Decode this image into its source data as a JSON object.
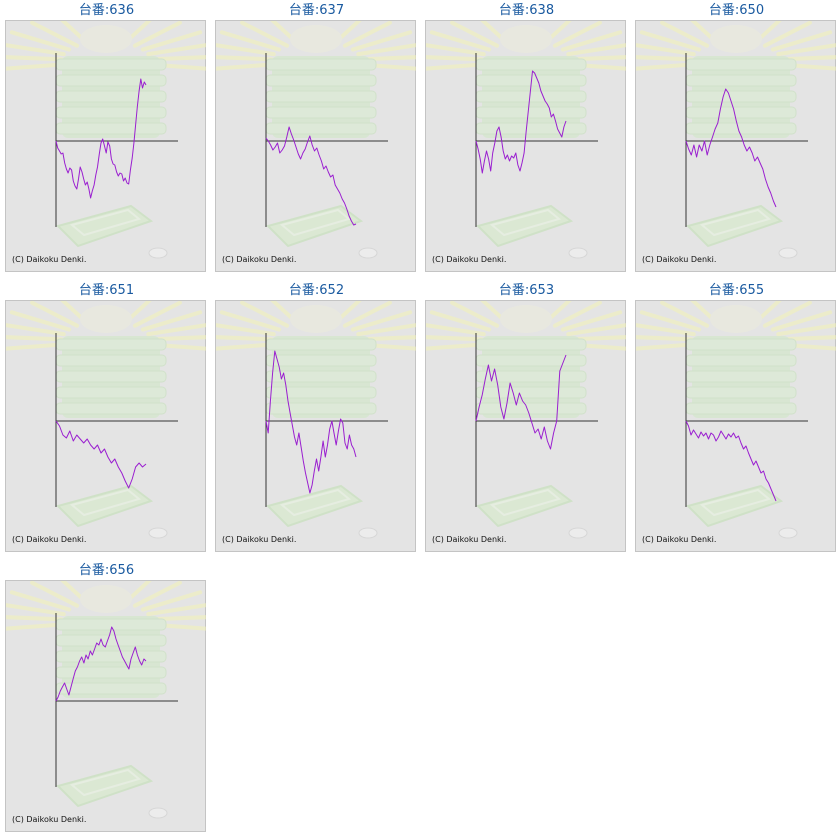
{
  "colors": {
    "line": "#9a1fd0",
    "title": "#1a5aa0",
    "background": "#e4e4e4",
    "axis": "#333333"
  },
  "copyright": "(C) Daikoku Denki.",
  "chart_data": [
    {
      "type": "line",
      "title": "台番:636",
      "y": [
        0,
        -7,
        -10,
        -13,
        -12,
        -22,
        -28,
        -32,
        -27,
        -29,
        -40,
        -45,
        -48,
        -38,
        -26,
        -31,
        -38,
        -44,
        -41,
        -48,
        -57,
        -50,
        -44,
        -34,
        -26,
        -13,
        -2,
        2,
        -5,
        -12,
        -1,
        -5,
        -18,
        -23,
        -24,
        -31,
        -35,
        -32,
        -33,
        -40,
        -37,
        -42,
        -43,
        -29,
        -17,
        -2,
        16,
        34,
        50,
        62,
        53,
        59,
        56
      ]
    },
    {
      "type": "line",
      "title": "台番:637",
      "y": [
        3,
        0,
        -4,
        -9,
        -6,
        -2,
        -12,
        -9,
        -5,
        4,
        14,
        7,
        1,
        -6,
        -13,
        -18,
        -12,
        -8,
        -1,
        5,
        -4,
        -10,
        -7,
        -14,
        -20,
        -28,
        -25,
        -31,
        -36,
        -34,
        -44,
        -48,
        -52,
        -58,
        -62,
        -68,
        -75,
        -80,
        -84,
        -83
      ]
    },
    {
      "type": "line",
      "title": "台番:638",
      "y": [
        0,
        -8,
        -18,
        -32,
        -20,
        -10,
        -18,
        -30,
        -12,
        -2,
        10,
        14,
        4,
        -10,
        -18,
        -14,
        -20,
        -15,
        -17,
        -12,
        -24,
        -30,
        -22,
        -12,
        10,
        30,
        50,
        70,
        68,
        63,
        58,
        50,
        45,
        40,
        37,
        33,
        24,
        27,
        20,
        12,
        8,
        4,
        14,
        20
      ]
    },
    {
      "type": "line",
      "title": "台番:650",
      "y": [
        0,
        -8,
        -14,
        -4,
        -16,
        -4,
        -10,
        0,
        -14,
        -4,
        4,
        12,
        18,
        32,
        44,
        52,
        48,
        40,
        32,
        20,
        10,
        4,
        -4,
        -10,
        -6,
        -12,
        -20,
        -16,
        -22,
        -28,
        -38,
        -46,
        -52,
        -60,
        -66
      ]
    },
    {
      "type": "line",
      "title": "台番:651",
      "y": [
        0,
        -5,
        -14,
        -17,
        -10,
        -20,
        -14,
        -18,
        -22,
        -18,
        -24,
        -28,
        -24,
        -32,
        -28,
        -36,
        -42,
        -38,
        -46,
        -52,
        -60,
        -67,
        -58,
        -46,
        -42,
        -46,
        -43
      ]
    },
    {
      "type": "line",
      "title": "台番:652",
      "y": [
        0,
        -12,
        20,
        48,
        70,
        62,
        54,
        42,
        48,
        36,
        20,
        8,
        -4,
        -16,
        -24,
        -12,
        -26,
        -40,
        -52,
        -62,
        -72,
        -64,
        -50,
        -38,
        -50,
        -36,
        -20,
        -36,
        -24,
        -8,
        0,
        -12,
        -24,
        -10,
        2,
        -2,
        -22,
        -28,
        -14,
        -24,
        -28,
        -36
      ]
    },
    {
      "type": "line",
      "title": "台番:653",
      "y": [
        0,
        14,
        26,
        42,
        56,
        40,
        52,
        36,
        14,
        2,
        18,
        38,
        28,
        16,
        28,
        20,
        16,
        8,
        -2,
        -12,
        -8,
        -18,
        -6,
        -20,
        -28,
        -12,
        0,
        50,
        58,
        66
      ]
    },
    {
      "type": "line",
      "title": "台番:655",
      "y": [
        0,
        -5,
        -14,
        -9,
        -13,
        -17,
        -11,
        -15,
        -12,
        -18,
        -12,
        -14,
        -20,
        -16,
        -10,
        -14,
        -18,
        -13,
        -16,
        -12,
        -17,
        -15,
        -22,
        -28,
        -25,
        -32,
        -38,
        -44,
        -40,
        -46,
        -52,
        -50,
        -58,
        -62,
        -68,
        -74,
        -80
      ]
    },
    {
      "type": "line",
      "title": "台番:656",
      "y": [
        0,
        4,
        10,
        14,
        18,
        12,
        6,
        14,
        22,
        30,
        34,
        40,
        44,
        38,
        46,
        42,
        50,
        46,
        52,
        58,
        56,
        62,
        56,
        54,
        60,
        66,
        74,
        70,
        62,
        56,
        50,
        44,
        40,
        36,
        32,
        42,
        48,
        54,
        46,
        40,
        36,
        42,
        40
      ]
    }
  ]
}
